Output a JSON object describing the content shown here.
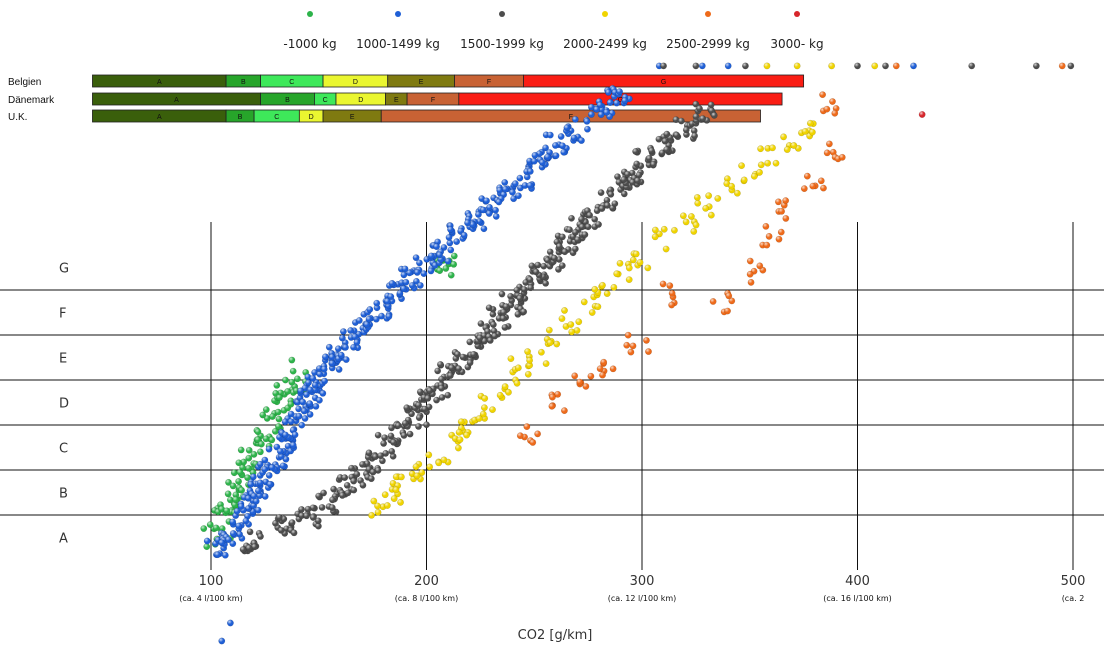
{
  "chart_data": {
    "type": "scatter",
    "xlabel": "CO2 [g/km]",
    "xlim": [
      50,
      515
    ],
    "x_ticks": [
      {
        "value": 100,
        "label": "100",
        "sub": "(ca. 4 l/100 km)"
      },
      {
        "value": 200,
        "label": "200",
        "sub": "(ca. 8 l/100 km)"
      },
      {
        "value": 300,
        "label": "300",
        "sub": "(ca. 12 l/100 km)"
      },
      {
        "value": 400,
        "label": "400",
        "sub": "(ca. 16 l/100 km)"
      },
      {
        "value": 500,
        "label": "500",
        "sub": "(ca. 2"
      }
    ],
    "efficiency_classes": [
      "A",
      "B",
      "C",
      "D",
      "E",
      "F",
      "G"
    ],
    "legend": {
      "placement": "top",
      "entries": [
        {
          "label": "-1000 kg",
          "color": "#2db34a"
        },
        {
          "label": "1000-1499 kg",
          "color": "#1f5fd6"
        },
        {
          "label": "1500-1999 kg",
          "color": "#4d4d4d"
        },
        {
          "label": "2000-2499 kg",
          "color": "#f0d400"
        },
        {
          "label": "2500-2999 kg",
          "color": "#ee6a1a"
        },
        {
          "label": "3000- kg",
          "color": "#d7262b"
        }
      ]
    },
    "country_bands": [
      {
        "country": "Belgien",
        "segments": [
          {
            "label": "A",
            "from": 45,
            "to": 107,
            "color": "#3a5f0b"
          },
          {
            "label": "B",
            "from": 107,
            "to": 123,
            "color": "#27a52a"
          },
          {
            "label": "C",
            "from": 123,
            "to": 152,
            "color": "#3ee85a"
          },
          {
            "label": "D",
            "from": 152,
            "to": 182,
            "color": "#eaf630"
          },
          {
            "label": "E",
            "from": 182,
            "to": 213,
            "color": "#7f7a10"
          },
          {
            "label": "F",
            "from": 213,
            "to": 245,
            "color": "#c86234"
          },
          {
            "label": "G",
            "from": 245,
            "to": 375,
            "color": "#fa1d14"
          }
        ]
      },
      {
        "country": "Dänemark",
        "segments": [
          {
            "label": "A",
            "from": 45,
            "to": 123,
            "color": "#3a5f0b"
          },
          {
            "label": "B",
            "from": 123,
            "to": 148,
            "color": "#27a52a"
          },
          {
            "label": "C",
            "from": 148,
            "to": 158,
            "color": "#3ee85a"
          },
          {
            "label": "D",
            "from": 158,
            "to": 181,
            "color": "#eaf630"
          },
          {
            "label": "E",
            "from": 181,
            "to": 191,
            "color": "#7f7a10"
          },
          {
            "label": "F",
            "from": 191,
            "to": 215,
            "color": "#c86234"
          },
          {
            "label": "G",
            "from": 215,
            "to": 365,
            "color": "#fa1d14"
          }
        ]
      },
      {
        "country": "U.K.",
        "segments": [
          {
            "label": "A",
            "from": 45,
            "to": 107,
            "color": "#3a5f0b"
          },
          {
            "label": "B",
            "from": 107,
            "to": 120,
            "color": "#27a52a"
          },
          {
            "label": "C",
            "from": 120,
            "to": 141,
            "color": "#3ee85a"
          },
          {
            "label": "D",
            "from": 141,
            "to": 152,
            "color": "#eaf630"
          },
          {
            "label": "E",
            "from": 152,
            "to": 179,
            "color": "#7f7a10"
          },
          {
            "label": "F",
            "from": 179,
            "to": 355,
            "color": "#c86234"
          }
        ]
      }
    ],
    "series": [
      {
        "color": "#2db34a",
        "points": [
          [
            101,
            0.45
          ],
          [
            104,
            0.7
          ],
          [
            106,
            0.95
          ],
          [
            108,
            1.15
          ],
          [
            110,
            1.3
          ],
          [
            112,
            1.55
          ],
          [
            113,
            1.8
          ],
          [
            116,
            2.05
          ],
          [
            118,
            2.2
          ],
          [
            120,
            2.4
          ],
          [
            123,
            2.55
          ],
          [
            125,
            2.8
          ],
          [
            128,
            3.05
          ],
          [
            130,
            3.3
          ],
          [
            133,
            3.55
          ],
          [
            135,
            3.75
          ],
          [
            138,
            3.95
          ],
          [
            142,
            4.2
          ],
          [
            208,
            6.65
          ],
          [
            209,
            6.55
          ]
        ]
      },
      {
        "color": "#1f5fd6",
        "points": [
          [
            102,
            0.35
          ],
          [
            110,
            0.55
          ],
          [
            115,
            1.0
          ],
          [
            118,
            1.3
          ],
          [
            122,
            1.6
          ],
          [
            126,
            1.9
          ],
          [
            130,
            2.25
          ],
          [
            134,
            2.6
          ],
          [
            138,
            2.95
          ],
          [
            142,
            3.3
          ],
          [
            146,
            3.65
          ],
          [
            150,
            3.95
          ],
          [
            155,
            4.3
          ],
          [
            160,
            4.6
          ],
          [
            165,
            4.95
          ],
          [
            172,
            5.3
          ],
          [
            178,
            5.6
          ],
          [
            186,
            5.95
          ],
          [
            193,
            6.25
          ],
          [
            200,
            6.55
          ],
          [
            208,
            6.85
          ],
          [
            215,
            7.2
          ],
          [
            222,
            7.5
          ],
          [
            230,
            7.8
          ],
          [
            238,
            8.2
          ],
          [
            245,
            8.5
          ],
          [
            252,
            8.85
          ],
          [
            260,
            9.2
          ],
          [
            270,
            9.55
          ],
          [
            281,
            10.05
          ],
          [
            289,
            10.3
          ],
          [
            308,
            10.98
          ],
          [
            328,
            10.98
          ],
          [
            340,
            10.98
          ],
          [
            426,
            10.98
          ],
          [
            109,
            -1.4
          ],
          [
            105,
            -1.8
          ]
        ]
      },
      {
        "color": "#4d4d4d",
        "points": [
          [
            120,
            0.4
          ],
          [
            135,
            0.7
          ],
          [
            145,
            1.0
          ],
          [
            155,
            1.3
          ],
          [
            162,
            1.6
          ],
          [
            170,
            1.9
          ],
          [
            175,
            2.2
          ],
          [
            182,
            2.55
          ],
          [
            188,
            2.85
          ],
          [
            195,
            3.2
          ],
          [
            200,
            3.5
          ],
          [
            205,
            3.8
          ],
          [
            210,
            4.1
          ],
          [
            216,
            4.4
          ],
          [
            222,
            4.75
          ],
          [
            228,
            5.05
          ],
          [
            234,
            5.4
          ],
          [
            240,
            5.7
          ],
          [
            246,
            6.05
          ],
          [
            252,
            6.35
          ],
          [
            258,
            6.7
          ],
          [
            264,
            7.0
          ],
          [
            270,
            7.35
          ],
          [
            276,
            7.65
          ],
          [
            283,
            8.0
          ],
          [
            290,
            8.3
          ],
          [
            296,
            8.6
          ],
          [
            302,
            8.95
          ],
          [
            310,
            9.25
          ],
          [
            320,
            9.6
          ],
          [
            330,
            9.95
          ],
          [
            310,
            10.98
          ],
          [
            325,
            10.98
          ],
          [
            348,
            10.98
          ],
          [
            400,
            10.98
          ],
          [
            413,
            10.98
          ],
          [
            453,
            10.98
          ],
          [
            483,
            10.98
          ],
          [
            499,
            10.98
          ]
        ]
      },
      {
        "color": "#f0d400",
        "points": [
          [
            178,
            1.2
          ],
          [
            183,
            1.5
          ],
          [
            190,
            1.75
          ],
          [
            198,
            2.0
          ],
          [
            205,
            2.3
          ],
          [
            212,
            2.65
          ],
          [
            218,
            2.95
          ],
          [
            224,
            3.25
          ],
          [
            230,
            3.55
          ],
          [
            237,
            3.95
          ],
          [
            244,
            4.3
          ],
          [
            252,
            4.6
          ],
          [
            260,
            4.95
          ],
          [
            267,
            5.3
          ],
          [
            275,
            5.65
          ],
          [
            282,
            6.0
          ],
          [
            290,
            6.4
          ],
          [
            300,
            6.7
          ],
          [
            310,
            7.1
          ],
          [
            320,
            7.45
          ],
          [
            330,
            7.85
          ],
          [
            340,
            8.25
          ],
          [
            350,
            8.6
          ],
          [
            360,
            8.95
          ],
          [
            370,
            9.3
          ],
          [
            380,
            9.65
          ],
          [
            358,
            10.98
          ],
          [
            372,
            10.98
          ],
          [
            388,
            10.98
          ],
          [
            408,
            10.98
          ]
        ]
      },
      {
        "color": "#ee6a1a",
        "points": [
          [
            247,
            2.75
          ],
          [
            260,
            3.5
          ],
          [
            272,
            3.95
          ],
          [
            285,
            4.3
          ],
          [
            298,
            4.75
          ],
          [
            312,
            5.9
          ],
          [
            338,
            5.7
          ],
          [
            352,
            6.4
          ],
          [
            360,
            7.2
          ],
          [
            367,
            7.8
          ],
          [
            380,
            8.4
          ],
          [
            390,
            9.0
          ],
          [
            386,
            10.1
          ],
          [
            418,
            10.98
          ],
          [
            495,
            10.98
          ]
        ]
      },
      {
        "color": "#d7262b",
        "points": [
          [
            430,
            9.9
          ]
        ]
      }
    ]
  }
}
